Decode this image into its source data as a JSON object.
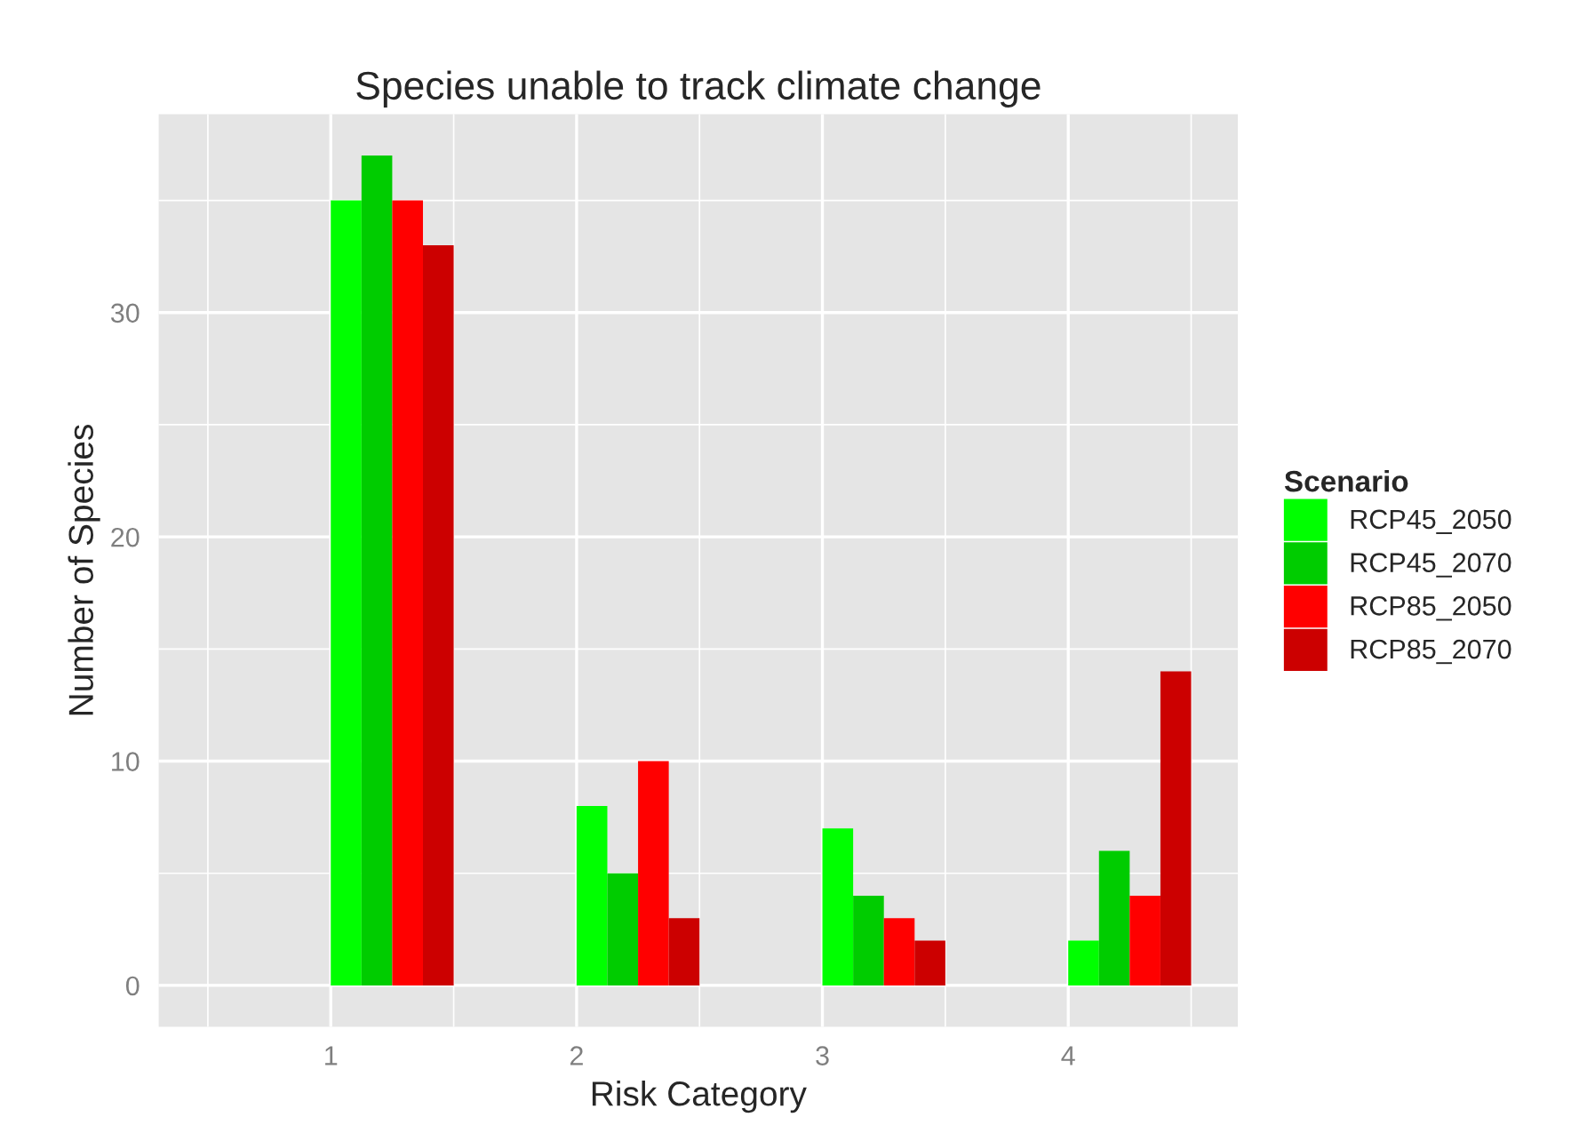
{
  "chart_data": {
    "type": "bar",
    "title": "Species unable to track climate change",
    "xlabel": "Risk Category",
    "ylabel": "Number of Species",
    "legend_title": "Scenario",
    "series": [
      {
        "name": "RCP45_2050",
        "color": "#00ff00",
        "x": [
          1.0625,
          2.0625,
          3.0625,
          4.0625
        ],
        "values": [
          35,
          8,
          7,
          2
        ]
      },
      {
        "name": "RCP45_2070",
        "color": "#00cc00",
        "x": [
          1.1875,
          2.1875,
          3.1875,
          4.1875
        ],
        "values": [
          37,
          5,
          4,
          6
        ]
      },
      {
        "name": "RCP85_2050",
        "color": "#ff0000",
        "x": [
          1.3125,
          2.3125,
          3.3125,
          4.3125
        ],
        "values": [
          35,
          10,
          3,
          4
        ]
      },
      {
        "name": "RCP85_2070",
        "color": "#cc0000",
        "x": [
          1.4375,
          2.4375,
          3.4375,
          4.4375
        ],
        "values": [
          33,
          3,
          2,
          14
        ]
      }
    ],
    "xlim": [
      0.3,
      4.69
    ],
    "xticks": [
      1,
      2,
      3,
      4
    ],
    "ylim": [
      -1.85,
      38.85
    ],
    "yticks": [
      0,
      10,
      20,
      30
    ],
    "grid": true,
    "legend": "right"
  }
}
